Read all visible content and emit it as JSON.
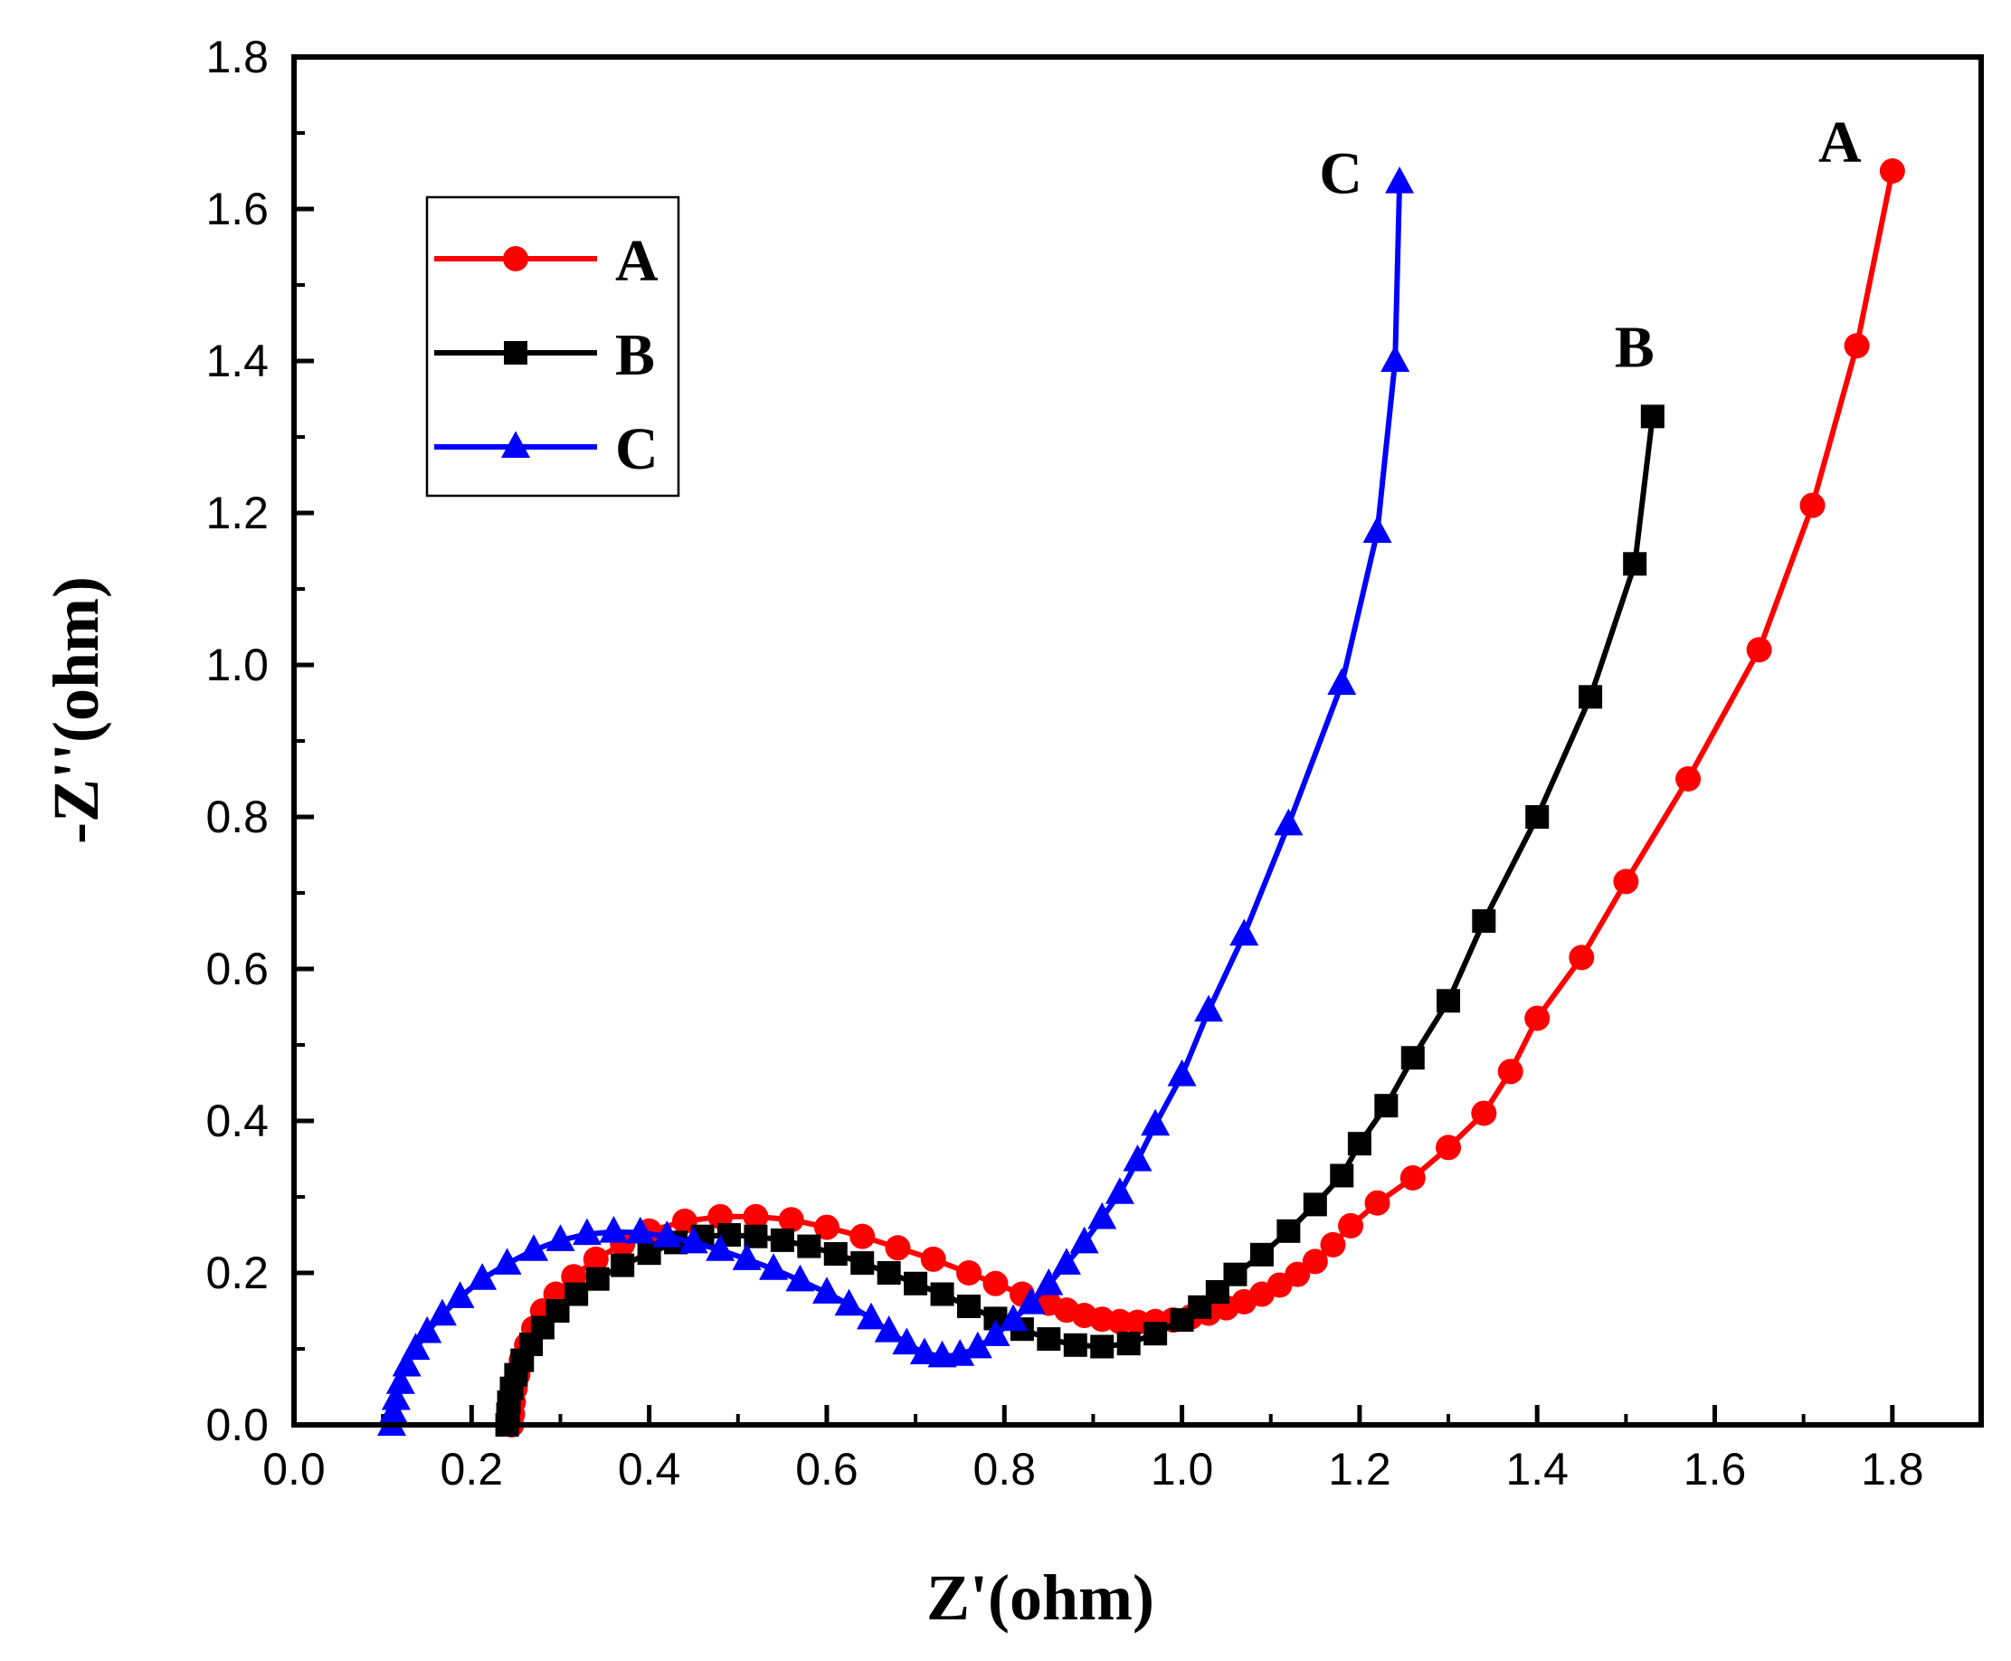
{
  "chart_data": {
    "type": "line",
    "title": "",
    "xlabel": "Z'(ohm)",
    "ylabel": "-Z''(ohm)",
    "xlim": [
      0.0,
      1.9
    ],
    "ylim": [
      0.0,
      1.8
    ],
    "xticks": [
      0.0,
      0.2,
      0.4,
      0.6,
      0.8,
      1.0,
      1.2,
      1.4,
      1.6,
      1.8
    ],
    "yticks": [
      0.0,
      0.2,
      0.4,
      0.6,
      0.8,
      1.0,
      1.2,
      1.4,
      1.6,
      1.8
    ],
    "xtick_labels": [
      "0.0",
      "0.2",
      "0.4",
      "0.6",
      "0.8",
      "1.0",
      "1.2",
      "1.4",
      "1.6",
      "1.8"
    ],
    "ytick_labels": [
      "0.0",
      "0.2",
      "0.4",
      "0.6",
      "0.8",
      "1.0",
      "1.2",
      "1.4",
      "1.6",
      "1.8"
    ],
    "grid": false,
    "legend_position": "top-left",
    "series": [
      {
        "name": "A",
        "color": "#ff0000",
        "marker": "circle",
        "end_label": "A",
        "points": [
          [
            0.245,
            0.0
          ],
          [
            0.246,
            0.014
          ],
          [
            0.247,
            0.03
          ],
          [
            0.249,
            0.048
          ],
          [
            0.252,
            0.066
          ],
          [
            0.256,
            0.085
          ],
          [
            0.262,
            0.105
          ],
          [
            0.27,
            0.127
          ],
          [
            0.28,
            0.15
          ],
          [
            0.295,
            0.172
          ],
          [
            0.315,
            0.195
          ],
          [
            0.34,
            0.218
          ],
          [
            0.37,
            0.238
          ],
          [
            0.4,
            0.255
          ],
          [
            0.44,
            0.268
          ],
          [
            0.48,
            0.274
          ],
          [
            0.52,
            0.274
          ],
          [
            0.56,
            0.27
          ],
          [
            0.6,
            0.26
          ],
          [
            0.64,
            0.248
          ],
          [
            0.68,
            0.233
          ],
          [
            0.72,
            0.218
          ],
          [
            0.76,
            0.2
          ],
          [
            0.79,
            0.186
          ],
          [
            0.82,
            0.172
          ],
          [
            0.85,
            0.16
          ],
          [
            0.87,
            0.151
          ],
          [
            0.89,
            0.144
          ],
          [
            0.91,
            0.139
          ],
          [
            0.93,
            0.136
          ],
          [
            0.95,
            0.135
          ],
          [
            0.97,
            0.136
          ],
          [
            0.99,
            0.138
          ],
          [
            1.01,
            0.142
          ],
          [
            1.03,
            0.147
          ],
          [
            1.05,
            0.154
          ],
          [
            1.07,
            0.162
          ],
          [
            1.09,
            0.172
          ],
          [
            1.11,
            0.184
          ],
          [
            1.13,
            0.198
          ],
          [
            1.15,
            0.215
          ],
          [
            1.17,
            0.237
          ],
          [
            1.19,
            0.262
          ],
          [
            1.22,
            0.292
          ],
          [
            1.26,
            0.325
          ],
          [
            1.3,
            0.365
          ],
          [
            1.34,
            0.41
          ],
          [
            1.37,
            0.465
          ],
          [
            1.4,
            0.535
          ],
          [
            1.45,
            0.615
          ],
          [
            1.5,
            0.715
          ],
          [
            1.57,
            0.85
          ],
          [
            1.65,
            1.02
          ],
          [
            1.71,
            1.21
          ],
          [
            1.76,
            1.42
          ],
          [
            1.8,
            1.65
          ]
        ]
      },
      {
        "name": "B",
        "color": "#000000",
        "marker": "square",
        "end_label": "B",
        "points": [
          [
            0.24,
            0.0
          ],
          [
            0.241,
            0.014
          ],
          [
            0.242,
            0.03
          ],
          [
            0.245,
            0.048
          ],
          [
            0.25,
            0.066
          ],
          [
            0.257,
            0.085
          ],
          [
            0.267,
            0.106
          ],
          [
            0.28,
            0.128
          ],
          [
            0.297,
            0.15
          ],
          [
            0.318,
            0.172
          ],
          [
            0.342,
            0.192
          ],
          [
            0.37,
            0.21
          ],
          [
            0.4,
            0.226
          ],
          [
            0.43,
            0.24
          ],
          [
            0.46,
            0.248
          ],
          [
            0.49,
            0.25
          ],
          [
            0.52,
            0.248
          ],
          [
            0.55,
            0.243
          ],
          [
            0.58,
            0.235
          ],
          [
            0.61,
            0.225
          ],
          [
            0.64,
            0.213
          ],
          [
            0.67,
            0.2
          ],
          [
            0.7,
            0.186
          ],
          [
            0.73,
            0.172
          ],
          [
            0.76,
            0.156
          ],
          [
            0.79,
            0.14
          ],
          [
            0.82,
            0.126
          ],
          [
            0.85,
            0.113
          ],
          [
            0.88,
            0.105
          ],
          [
            0.91,
            0.103
          ],
          [
            0.94,
            0.107
          ],
          [
            0.97,
            0.12
          ],
          [
            1.0,
            0.138
          ],
          [
            1.02,
            0.155
          ],
          [
            1.04,
            0.175
          ],
          [
            1.06,
            0.198
          ],
          [
            1.09,
            0.224
          ],
          [
            1.12,
            0.255
          ],
          [
            1.15,
            0.29
          ],
          [
            1.18,
            0.328
          ],
          [
            1.2,
            0.37
          ],
          [
            1.23,
            0.42
          ],
          [
            1.26,
            0.483
          ],
          [
            1.3,
            0.558
          ],
          [
            1.34,
            0.663
          ],
          [
            1.4,
            0.8
          ],
          [
            1.46,
            0.958
          ],
          [
            1.51,
            1.133
          ],
          [
            1.53,
            1.327
          ]
        ]
      },
      {
        "name": "C",
        "color": "#0000ff",
        "marker": "triangle",
        "end_label": "C",
        "points": [
          [
            0.11,
            0.0
          ],
          [
            0.112,
            0.016
          ],
          [
            0.115,
            0.034
          ],
          [
            0.12,
            0.055
          ],
          [
            0.127,
            0.078
          ],
          [
            0.137,
            0.1
          ],
          [
            0.15,
            0.122
          ],
          [
            0.167,
            0.145
          ],
          [
            0.187,
            0.168
          ],
          [
            0.212,
            0.192
          ],
          [
            0.24,
            0.212
          ],
          [
            0.27,
            0.23
          ],
          [
            0.3,
            0.243
          ],
          [
            0.33,
            0.251
          ],
          [
            0.36,
            0.254
          ],
          [
            0.39,
            0.253
          ],
          [
            0.42,
            0.248
          ],
          [
            0.45,
            0.24
          ],
          [
            0.48,
            0.23
          ],
          [
            0.51,
            0.218
          ],
          [
            0.54,
            0.205
          ],
          [
            0.57,
            0.19
          ],
          [
            0.6,
            0.174
          ],
          [
            0.625,
            0.158
          ],
          [
            0.65,
            0.14
          ],
          [
            0.67,
            0.123
          ],
          [
            0.69,
            0.107
          ],
          [
            0.71,
            0.094
          ],
          [
            0.73,
            0.09
          ],
          [
            0.75,
            0.092
          ],
          [
            0.77,
            0.102
          ],
          [
            0.79,
            0.118
          ],
          [
            0.81,
            0.138
          ],
          [
            0.83,
            0.16
          ],
          [
            0.85,
            0.185
          ],
          [
            0.87,
            0.212
          ],
          [
            0.89,
            0.24
          ],
          [
            0.91,
            0.272
          ],
          [
            0.93,
            0.305
          ],
          [
            0.95,
            0.348
          ],
          [
            0.97,
            0.395
          ],
          [
            1.0,
            0.46
          ],
          [
            1.03,
            0.545
          ],
          [
            1.07,
            0.645
          ],
          [
            1.12,
            0.79
          ],
          [
            1.18,
            0.975
          ],
          [
            1.22,
            1.175
          ],
          [
            1.24,
            1.4
          ],
          [
            1.245,
            1.635
          ]
        ]
      }
    ]
  }
}
